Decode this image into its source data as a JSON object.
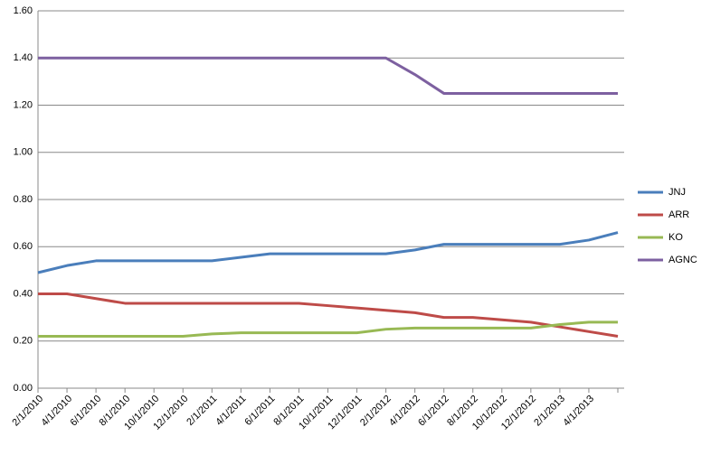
{
  "chart_data": {
    "type": "line",
    "categories": [
      "2/1/2010",
      "4/1/2010",
      "6/1/2010",
      "8/1/2010",
      "10/1/2010",
      "12/1/2010",
      "2/1/2011",
      "4/1/2011",
      "6/1/2011",
      "8/1/2011",
      "10/1/2011",
      "12/1/2011",
      "2/1/2012",
      "4/1/2012",
      "6/1/2012",
      "8/1/2012",
      "10/1/2012",
      "12/1/2012",
      "2/1/2013",
      "4/1/2013",
      null
    ],
    "series": [
      {
        "name": "JNJ",
        "color": "#4a7ebb",
        "values": [
          0.49,
          0.52,
          0.54,
          0.54,
          0.54,
          0.54,
          0.54,
          0.555,
          0.57,
          0.57,
          0.57,
          0.57,
          0.57,
          0.586,
          0.61,
          0.61,
          0.61,
          0.61,
          0.61,
          0.628,
          0.66
        ]
      },
      {
        "name": "ARR",
        "color": "#be4b48",
        "values": [
          0.4,
          0.4,
          0.38,
          0.36,
          0.36,
          0.36,
          0.36,
          0.36,
          0.36,
          0.36,
          0.35,
          0.34,
          0.33,
          0.32,
          0.3,
          0.3,
          0.29,
          0.28,
          0.26,
          0.24,
          0.22
        ]
      },
      {
        "name": "KO",
        "color": "#98b954",
        "values": [
          0.22,
          0.22,
          0.22,
          0.22,
          0.22,
          0.22,
          0.23,
          0.235,
          0.235,
          0.235,
          0.235,
          0.235,
          0.25,
          0.255,
          0.255,
          0.255,
          0.255,
          0.255,
          0.27,
          0.28,
          0.28
        ]
      },
      {
        "name": "AGNC",
        "color": "#7d60a0",
        "values": [
          1.4,
          1.4,
          1.4,
          1.4,
          1.4,
          1.4,
          1.4,
          1.4,
          1.4,
          1.4,
          1.4,
          1.4,
          1.4,
          1.33,
          1.25,
          1.25,
          1.25,
          1.25,
          1.25,
          1.25,
          1.25
        ]
      }
    ],
    "ylim": [
      0,
      1.6
    ],
    "yticks": [
      {
        "value": 0,
        "label": "0.00"
      },
      {
        "value": 0.2,
        "label": "0.20"
      },
      {
        "value": 0.4,
        "label": "0.40"
      },
      {
        "value": 0.6,
        "label": "0.60"
      },
      {
        "value": 0.8,
        "label": "0.80"
      },
      {
        "value": 1,
        "label": "1.00"
      },
      {
        "value": 1.2,
        "label": "1.20"
      },
      {
        "value": 1.4,
        "label": "1.40"
      },
      {
        "value": 1.6,
        "label": "1.60"
      }
    ],
    "grid": true,
    "legend": "right"
  }
}
